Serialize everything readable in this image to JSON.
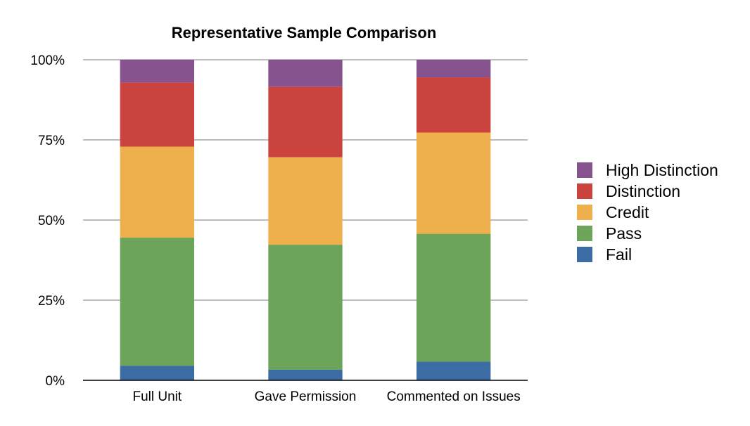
{
  "chart_data": {
    "type": "bar",
    "stacked": true,
    "title": "Representative Sample Comparison",
    "xlabel": "",
    "ylabel": "",
    "ylim": [
      0,
      100
    ],
    "yticks": [
      "0%",
      "25%",
      "50%",
      "75%",
      "100%"
    ],
    "grid": true,
    "legend_position": "right",
    "categories": [
      "Full Unit",
      "Gave Permission",
      "Commented on Issues"
    ],
    "series": [
      {
        "name": "Fail",
        "color": "#3c6ca4",
        "values": [
          4.5,
          3.3,
          5.8
        ]
      },
      {
        "name": "Pass",
        "color": "#6ca55a",
        "values": [
          40.0,
          39.0,
          39.9
        ]
      },
      {
        "name": "Credit",
        "color": "#eeb04c",
        "values": [
          28.4,
          27.3,
          31.6
        ]
      },
      {
        "name": "Distinction",
        "color": "#cb433f",
        "values": [
          20.0,
          22.0,
          17.2
        ]
      },
      {
        "name": "High Distinction",
        "color": "#86538f",
        "values": [
          7.1,
          8.4,
          5.5
        ]
      }
    ]
  }
}
